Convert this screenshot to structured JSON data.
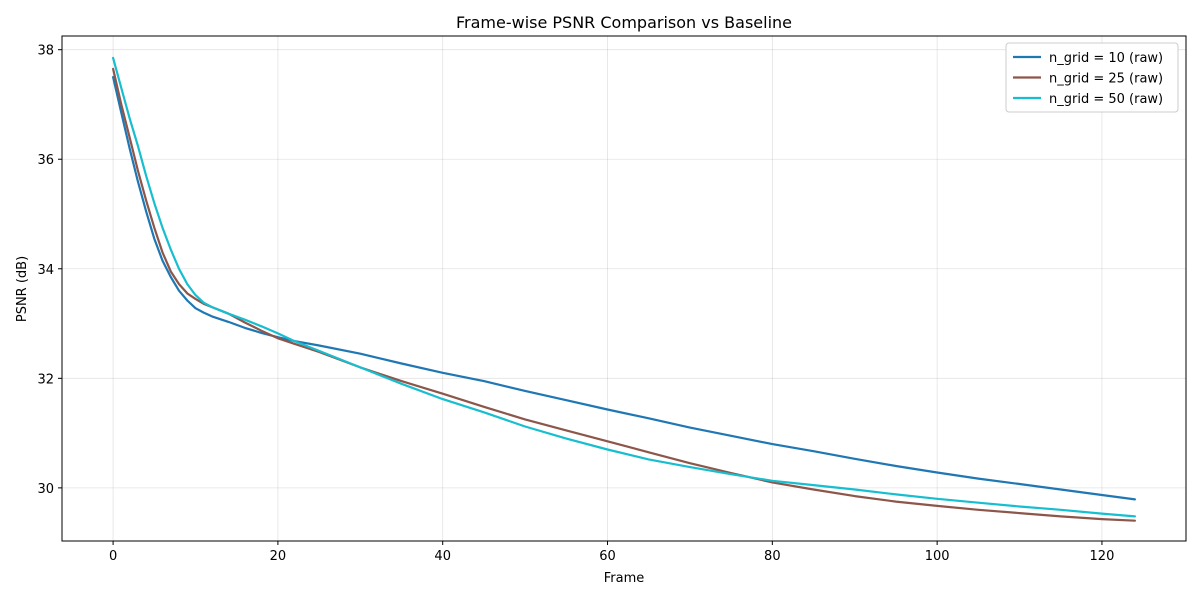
{
  "chart_data": {
    "type": "line",
    "title": "Frame-wise PSNR Comparison vs Baseline",
    "xlabel": "Frame",
    "ylabel": "PSNR (dB)",
    "xlim": [
      -6.2,
      130.2
    ],
    "ylim": [
      29.03,
      38.25
    ],
    "xticks": [
      0,
      20,
      40,
      60,
      80,
      100,
      120
    ],
    "yticks": [
      30,
      32,
      34,
      36,
      38
    ],
    "grid": true,
    "legend_position": "top-right",
    "series": [
      {
        "name": "n_grid = 10 (raw)",
        "color": "#1f77b4",
        "x": [
          0,
          1,
          2,
          3,
          4,
          5,
          6,
          7,
          8,
          9,
          10,
          11,
          12,
          14,
          16,
          18,
          20,
          22,
          25,
          30,
          35,
          40,
          45,
          50,
          55,
          60,
          65,
          70,
          75,
          80,
          85,
          90,
          95,
          100,
          105,
          110,
          115,
          120,
          124
        ],
        "values": [
          37.5,
          36.85,
          36.2,
          35.6,
          35.05,
          34.55,
          34.15,
          33.85,
          33.6,
          33.42,
          33.28,
          33.2,
          33.13,
          33.03,
          32.92,
          32.83,
          32.75,
          32.68,
          32.6,
          32.45,
          32.27,
          32.1,
          31.95,
          31.77,
          31.6,
          31.43,
          31.27,
          31.1,
          30.95,
          30.8,
          30.67,
          30.53,
          30.4,
          30.28,
          30.17,
          30.07,
          29.97,
          29.87,
          29.79
        ]
      },
      {
        "name": "n_grid = 25 (raw)",
        "color": "#8c564b",
        "x": [
          0,
          1,
          2,
          3,
          4,
          5,
          6,
          7,
          8,
          9,
          10,
          11,
          12,
          14,
          16,
          18,
          20,
          22,
          25,
          30,
          35,
          40,
          45,
          50,
          55,
          60,
          65,
          70,
          75,
          80,
          85,
          90,
          95,
          100,
          105,
          110,
          115,
          120,
          124
        ],
        "values": [
          37.65,
          37.0,
          36.4,
          35.8,
          35.25,
          34.75,
          34.3,
          33.95,
          33.72,
          33.55,
          33.45,
          33.36,
          33.3,
          33.18,
          33.02,
          32.87,
          32.73,
          32.63,
          32.48,
          32.2,
          31.95,
          31.72,
          31.48,
          31.25,
          31.05,
          30.85,
          30.65,
          30.45,
          30.27,
          30.1,
          29.97,
          29.85,
          29.75,
          29.67,
          29.6,
          29.54,
          29.48,
          29.43,
          29.4
        ]
      },
      {
        "name": "n_grid = 50 (raw)",
        "color": "#17becf",
        "x": [
          0,
          1,
          2,
          3,
          4,
          5,
          6,
          7,
          8,
          9,
          10,
          11,
          12,
          14,
          16,
          18,
          20,
          22,
          25,
          30,
          35,
          40,
          45,
          50,
          55,
          60,
          65,
          70,
          75,
          80,
          85,
          90,
          95,
          100,
          105,
          110,
          115,
          120,
          124
        ],
        "values": [
          37.85,
          37.3,
          36.75,
          36.25,
          35.7,
          35.2,
          34.75,
          34.35,
          34.0,
          33.72,
          33.52,
          33.38,
          33.3,
          33.18,
          33.07,
          32.95,
          32.82,
          32.68,
          32.5,
          32.2,
          31.9,
          31.62,
          31.38,
          31.12,
          30.9,
          30.7,
          30.52,
          30.38,
          30.25,
          30.13,
          30.05,
          29.97,
          29.88,
          29.8,
          29.73,
          29.66,
          29.6,
          29.53,
          29.48
        ]
      }
    ]
  }
}
